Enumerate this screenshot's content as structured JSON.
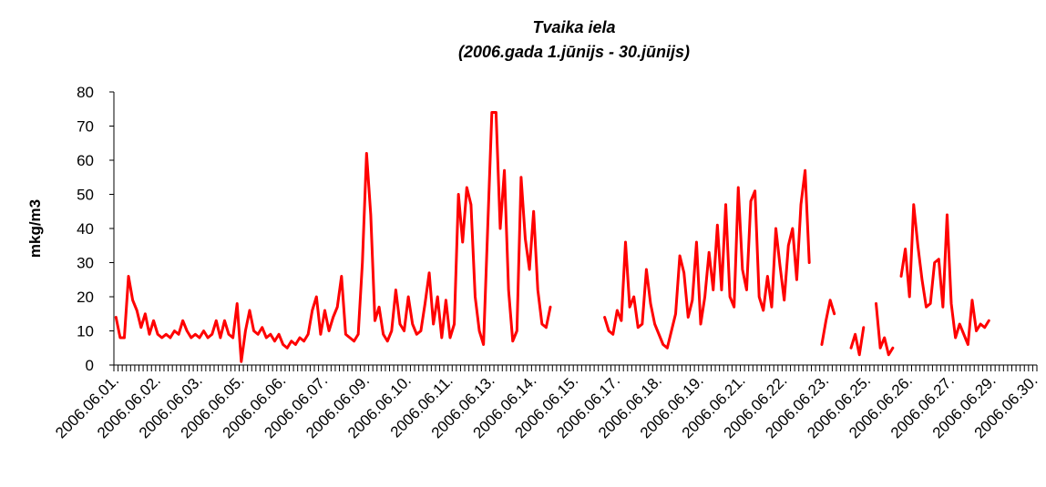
{
  "chart_data": {
    "type": "line",
    "title": "Tvaika iela",
    "subtitle": "(2006.gada 1.jūnijs - 30.jūnijs)",
    "y_label": "mkg/m3",
    "ylim": [
      0,
      80
    ],
    "yticks": [
      0,
      10,
      20,
      30,
      40,
      50,
      60,
      70,
      80
    ],
    "grid": false,
    "categories": [
      "2006.06.01.",
      null,
      null,
      null,
      null,
      null,
      null,
      null,
      null,
      null,
      "2006.06.02.",
      null,
      null,
      null,
      null,
      null,
      null,
      null,
      null,
      null,
      "2006.06.03.",
      null,
      null,
      null,
      null,
      null,
      null,
      null,
      null,
      null,
      "2006.06.05.",
      null,
      null,
      null,
      null,
      null,
      null,
      null,
      null,
      null,
      "2006.06.06.",
      null,
      null,
      null,
      null,
      null,
      null,
      null,
      null,
      null,
      "2006.06.07.",
      null,
      null,
      null,
      null,
      null,
      null,
      null,
      null,
      null,
      "2006.06.09.",
      null,
      null,
      null,
      null,
      null,
      null,
      null,
      null,
      null,
      "2006.06.10.",
      null,
      null,
      null,
      null,
      null,
      null,
      null,
      null,
      null,
      "2006.06.11.",
      null,
      null,
      null,
      null,
      null,
      null,
      null,
      null,
      null,
      "2006.06.13.",
      null,
      null,
      null,
      null,
      null,
      null,
      null,
      null,
      null,
      "2006.06.14.",
      null,
      null,
      null,
      null,
      null,
      null,
      null,
      null,
      null,
      "2006.06.15.",
      null,
      null,
      null,
      null,
      null,
      null,
      null,
      null,
      null,
      "2006.06.17.",
      null,
      null,
      null,
      null,
      null,
      null,
      null,
      null,
      null,
      "2006.06.18.",
      null,
      null,
      null,
      null,
      null,
      null,
      null,
      null,
      null,
      "2006.06.19.",
      null,
      null,
      null,
      null,
      null,
      null,
      null,
      null,
      null,
      "2006.06.21.",
      null,
      null,
      null,
      null,
      null,
      null,
      null,
      null,
      null,
      "2006.06.22.",
      null,
      null,
      null,
      null,
      null,
      null,
      null,
      null,
      null,
      "2006.06.23.",
      null,
      null,
      null,
      null,
      null,
      null,
      null,
      null,
      null,
      "2006.06.25.",
      null,
      null,
      null,
      null,
      null,
      null,
      null,
      null,
      null,
      "2006.06.26.",
      null,
      null,
      null,
      null,
      null,
      null,
      null,
      null,
      null,
      "2006.06.27.",
      null,
      null,
      null,
      null,
      null,
      null,
      null,
      null,
      null,
      "2006.06.29.",
      null,
      null,
      null,
      null,
      null,
      null,
      null,
      null,
      null,
      "2006.06.30."
    ],
    "series": [
      {
        "name": "Tvaika iela",
        "color": "#ff0000",
        "values": [
          14,
          8,
          8,
          26,
          19,
          16,
          11,
          15,
          9,
          13,
          9,
          8,
          9,
          8,
          10,
          9,
          13,
          10,
          8,
          9,
          8,
          10,
          8,
          9,
          13,
          8,
          13,
          9,
          8,
          18,
          1,
          10,
          16,
          10,
          9,
          11,
          8,
          9,
          7,
          9,
          6,
          5,
          7,
          6,
          8,
          7,
          9,
          16,
          20,
          9,
          16,
          10,
          14,
          17,
          26,
          9,
          8,
          7,
          9,
          30,
          62,
          44,
          13,
          17,
          9,
          7,
          10,
          22,
          12,
          10,
          20,
          12,
          9,
          10,
          18,
          27,
          12,
          20,
          8,
          19,
          8,
          12,
          50,
          36,
          52,
          47,
          20,
          10,
          6,
          40,
          74,
          74,
          40,
          57,
          22,
          7,
          10,
          55,
          37,
          28,
          45,
          22,
          12,
          11,
          17,
          null,
          null,
          null,
          null,
          null,
          null,
          null,
          null,
          null,
          null,
          null,
          null,
          14,
          10,
          9,
          16,
          13,
          36,
          17,
          20,
          11,
          12,
          28,
          18,
          12,
          9,
          6,
          5,
          10,
          15,
          32,
          27,
          14,
          19,
          36,
          12,
          20,
          33,
          22,
          41,
          22,
          47,
          20,
          17,
          52,
          28,
          22,
          48,
          51,
          20,
          16,
          26,
          17,
          40,
          29,
          19,
          35,
          40,
          25,
          47,
          57,
          30,
          null,
          null,
          6,
          13,
          19,
          15,
          null,
          null,
          null,
          5,
          9,
          3,
          11,
          null,
          null,
          18,
          5,
          8,
          3,
          5,
          null,
          26,
          34,
          20,
          47,
          35,
          25,
          17,
          18,
          30,
          31,
          17,
          44,
          18,
          8,
          12,
          9,
          6,
          19,
          10,
          12,
          11,
          13,
          null,
          null,
          null,
          null,
          null,
          null,
          null,
          null,
          null,
          null,
          null
        ]
      }
    ]
  }
}
